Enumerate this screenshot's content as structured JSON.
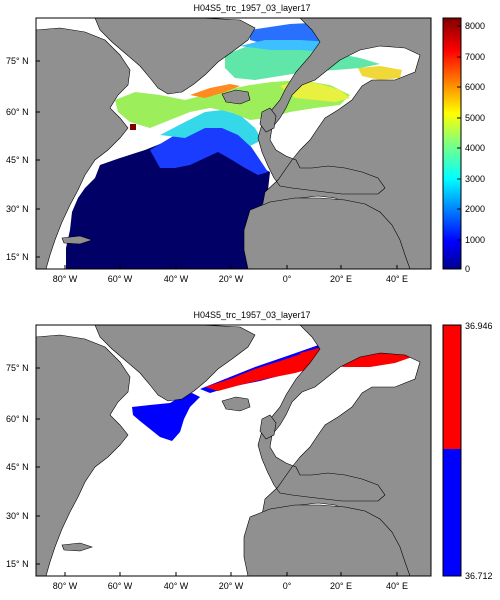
{
  "panel1": {
    "title": "H04S5_trc_1957_03_layer17",
    "lat_ticks": [
      "75° N",
      "60° N",
      "45° N",
      "30° N",
      "15° N"
    ],
    "lon_ticks": [
      "80° W",
      "60° W",
      "40° W",
      "20° W",
      "0°",
      "20° E",
      "40° E"
    ],
    "colorbar": {
      "ticks": [
        "8000",
        "7000",
        "6000",
        "5000",
        "4000",
        "3000",
        "2000",
        "1000",
        "0"
      ],
      "min": 0,
      "max": 8000,
      "colormap": "jet"
    }
  },
  "panel2": {
    "title": "H04S5_trc_1957_03_layer17",
    "lat_ticks": [
      "75° N",
      "60° N",
      "45° N",
      "30° N",
      "15° N"
    ],
    "lon_ticks": [
      "80° W",
      "60° W",
      "40° W",
      "20° W",
      "0°",
      "20° E",
      "40° E"
    ],
    "colorbar": {
      "max_label": "36.946",
      "min_label": "36.712",
      "upper_color": "#ff0000",
      "lower_color": "#0000ff"
    }
  },
  "colors": {
    "land": "#909090",
    "ocean_nodata": "#ffffff",
    "deep_navy": "#000066"
  }
}
